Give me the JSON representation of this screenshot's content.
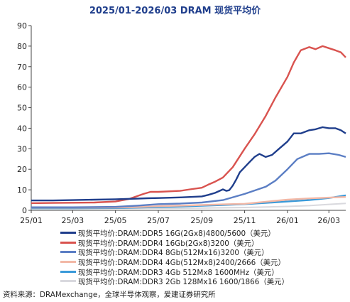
{
  "chart_data": {
    "type": "line",
    "title": "2025/01-2026/03 DRAM 现货平均价",
    "xlabel": "",
    "ylabel": "",
    "ylim": [
      0,
      90
    ],
    "yticks": [
      0,
      10,
      20,
      30,
      40,
      50,
      60,
      70,
      80,
      90
    ],
    "xlim": [
      "2025-01-01",
      "2026-03-25"
    ],
    "xticks": [
      {
        "date": "2025-01-01",
        "label": "25/01"
      },
      {
        "date": "2025-03-01",
        "label": "25/03"
      },
      {
        "date": "2025-05-01",
        "label": "25/05"
      },
      {
        "date": "2025-07-01",
        "label": "25/07"
      },
      {
        "date": "2025-09-01",
        "label": "25/09"
      },
      {
        "date": "2025-11-01",
        "label": "25/11"
      },
      {
        "date": "2026-01-01",
        "label": "26/01"
      },
      {
        "date": "2026-03-01",
        "label": "26/03"
      }
    ],
    "grid": false,
    "legend_position": "bottom",
    "series": [
      {
        "name": "现货平均价:DRAM:DDR5 16G(2Gx8)4800/5600（美元）",
        "color": "#1f3e8c",
        "points": [
          [
            "2025-01-01",
            4.8
          ],
          [
            "2025-02-01",
            4.8
          ],
          [
            "2025-03-01",
            5.0
          ],
          [
            "2025-04-01",
            5.2
          ],
          [
            "2025-05-01",
            5.4
          ],
          [
            "2025-06-01",
            5.7
          ],
          [
            "2025-06-15",
            5.9
          ],
          [
            "2025-07-01",
            6.0
          ],
          [
            "2025-08-01",
            6.3
          ],
          [
            "2025-09-01",
            6.8
          ],
          [
            "2025-09-10",
            7.5
          ],
          [
            "2025-09-20",
            8.5
          ],
          [
            "2025-10-01",
            10.2
          ],
          [
            "2025-10-06",
            9.5
          ],
          [
            "2025-10-10",
            9.8
          ],
          [
            "2025-10-15",
            12.0
          ],
          [
            "2025-10-20",
            15.0
          ],
          [
            "2025-10-25",
            18.5
          ],
          [
            "2025-11-01",
            21.0
          ],
          [
            "2025-11-08",
            23.5
          ],
          [
            "2025-11-15",
            26.0
          ],
          [
            "2025-11-22",
            27.5
          ],
          [
            "2025-12-01",
            26.0
          ],
          [
            "2025-12-10",
            27.0
          ],
          [
            "2025-12-20",
            30.0
          ],
          [
            "2026-01-01",
            33.5
          ],
          [
            "2026-01-10",
            37.5
          ],
          [
            "2026-01-20",
            37.5
          ],
          [
            "2026-02-01",
            39.0
          ],
          [
            "2026-02-10",
            39.5
          ],
          [
            "2026-02-20",
            40.5
          ],
          [
            "2026-03-01",
            40.0
          ],
          [
            "2026-03-10",
            40.0
          ],
          [
            "2026-03-18",
            39.0
          ],
          [
            "2026-03-25",
            37.5
          ]
        ]
      },
      {
        "name": "现货平均价:DRAM:DDR4 16Gb(2Gx8)3200（美元）",
        "color": "#d9534f",
        "points": [
          [
            "2025-01-01",
            3.5
          ],
          [
            "2025-02-01",
            3.6
          ],
          [
            "2025-03-01",
            3.7
          ],
          [
            "2025-04-01",
            3.8
          ],
          [
            "2025-05-01",
            4.3
          ],
          [
            "2025-05-20",
            5.5
          ],
          [
            "2025-06-10",
            8.0
          ],
          [
            "2025-06-20",
            9.0
          ],
          [
            "2025-07-01",
            9.0
          ],
          [
            "2025-08-01",
            9.5
          ],
          [
            "2025-08-15",
            10.2
          ],
          [
            "2025-09-01",
            11.0
          ],
          [
            "2025-09-10",
            12.5
          ],
          [
            "2025-09-20",
            14.0
          ],
          [
            "2025-10-01",
            16.0
          ],
          [
            "2025-10-15",
            21.0
          ],
          [
            "2025-11-01",
            30.0
          ],
          [
            "2025-11-15",
            37.0
          ],
          [
            "2025-12-01",
            46.0
          ],
          [
            "2025-12-15",
            55.0
          ],
          [
            "2026-01-01",
            65.0
          ],
          [
            "2026-01-10",
            72.0
          ],
          [
            "2026-01-20",
            78.0
          ],
          [
            "2026-02-01",
            79.5
          ],
          [
            "2026-02-10",
            78.5
          ],
          [
            "2026-02-20",
            80.0
          ],
          [
            "2026-03-01",
            79.0
          ],
          [
            "2026-03-10",
            78.0
          ],
          [
            "2026-03-18",
            77.0
          ],
          [
            "2026-03-25",
            74.5
          ]
        ]
      },
      {
        "name": "现货平均价:DRAM:DDR4 8Gb(512Mx16)3200（美元）",
        "color": "#5b7ec4",
        "points": [
          [
            "2025-01-01",
            1.5
          ],
          [
            "2025-03-01",
            1.5
          ],
          [
            "2025-05-01",
            1.7
          ],
          [
            "2025-06-01",
            2.3
          ],
          [
            "2025-07-01",
            3.0
          ],
          [
            "2025-08-01",
            3.3
          ],
          [
            "2025-09-01",
            3.8
          ],
          [
            "2025-10-01",
            5.0
          ],
          [
            "2025-11-01",
            8.0
          ],
          [
            "2025-12-01",
            11.5
          ],
          [
            "2025-12-15",
            14.5
          ],
          [
            "2026-01-01",
            20.0
          ],
          [
            "2026-01-15",
            25.0
          ],
          [
            "2026-02-01",
            27.5
          ],
          [
            "2026-02-15",
            27.5
          ],
          [
            "2026-03-01",
            27.8
          ],
          [
            "2026-03-15",
            27.0
          ],
          [
            "2026-03-25",
            26.0
          ]
        ]
      },
      {
        "name": "现货平均价:DRAM:DDR4 4Gb(512Mx8)2400/2666（美元）",
        "color": "#f2b8a6",
        "points": [
          [
            "2025-01-01",
            1.3
          ],
          [
            "2025-03-01",
            1.3
          ],
          [
            "2025-05-01",
            1.4
          ],
          [
            "2025-06-01",
            1.6
          ],
          [
            "2025-07-01",
            2.0
          ],
          [
            "2025-08-01",
            2.3
          ],
          [
            "2025-09-01",
            2.6
          ],
          [
            "2025-10-01",
            2.9
          ],
          [
            "2025-11-01",
            3.2
          ],
          [
            "2025-12-01",
            4.2
          ],
          [
            "2026-01-01",
            5.2
          ],
          [
            "2026-02-01",
            5.8
          ],
          [
            "2026-03-01",
            6.2
          ],
          [
            "2026-03-25",
            6.5
          ]
        ]
      },
      {
        "name": "现货平均价:DRAM:DDR3 4Gb 512Mx8 1600MHz（美元）",
        "color": "#3a9ad9",
        "points": [
          [
            "2025-01-01",
            1.0
          ],
          [
            "2025-03-01",
            1.0
          ],
          [
            "2025-05-01",
            1.1
          ],
          [
            "2025-06-01",
            1.3
          ],
          [
            "2025-07-01",
            1.6
          ],
          [
            "2025-08-01",
            1.9
          ],
          [
            "2025-09-01",
            2.2
          ],
          [
            "2025-10-01",
            2.6
          ],
          [
            "2025-11-01",
            3.0
          ],
          [
            "2025-12-01",
            3.6
          ],
          [
            "2026-01-01",
            4.3
          ],
          [
            "2026-02-01",
            5.0
          ],
          [
            "2026-03-01",
            6.0
          ],
          [
            "2026-03-25",
            7.3
          ]
        ]
      },
      {
        "name": "现货平均价:DRAM:DDR3 2Gb 128Mx16 1600/1866（美元）",
        "color": "#d9d9de",
        "points": [
          [
            "2025-01-01",
            0.8
          ],
          [
            "2025-03-01",
            0.8
          ],
          [
            "2025-05-01",
            0.9
          ],
          [
            "2025-07-01",
            1.0
          ],
          [
            "2025-09-01",
            1.1
          ],
          [
            "2025-11-01",
            1.4
          ],
          [
            "2026-01-01",
            1.9
          ],
          [
            "2026-02-01",
            2.3
          ],
          [
            "2026-03-01",
            2.9
          ],
          [
            "2026-03-25",
            3.4
          ]
        ]
      }
    ]
  },
  "source_note": "资料来源：DRAMexchange，全球半导体观察，爱建证券研究所"
}
